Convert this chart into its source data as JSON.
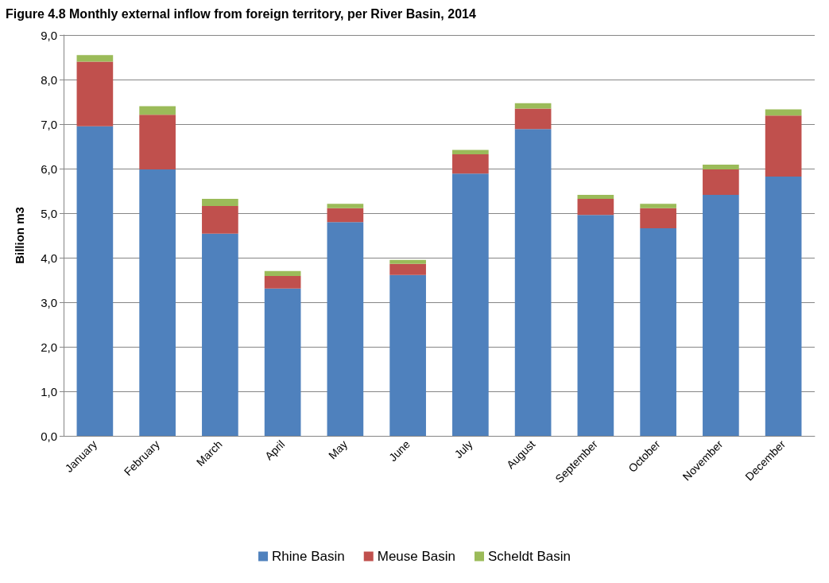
{
  "chart_data": {
    "type": "bar",
    "title": "Figure 4.8 Monthly external inflow from foreign territory, per River Basin, 2014",
    "ylabel": "Billion m3",
    "categories": [
      "January",
      "February",
      "March",
      "April",
      "May",
      "June",
      "July",
      "August",
      "September",
      "October",
      "November",
      "December"
    ],
    "stacked": true,
    "series": [
      {
        "name": "Rhine Basin",
        "color": "#4f81bd",
        "values": [
          6.95,
          5.98,
          4.54,
          3.31,
          4.8,
          3.61,
          5.89,
          6.89,
          4.96,
          4.66,
          5.41,
          5.82
        ]
      },
      {
        "name": "Meuse Basin",
        "color": "#c0504d",
        "values": [
          1.45,
          1.23,
          0.62,
          0.28,
          0.31,
          0.25,
          0.43,
          0.46,
          0.36,
          0.45,
          0.57,
          1.37
        ]
      },
      {
        "name": "Scheldt Basin",
        "color": "#9bbb59",
        "values": [
          0.15,
          0.19,
          0.16,
          0.11,
          0.1,
          0.09,
          0.1,
          0.12,
          0.09,
          0.1,
          0.11,
          0.14
        ]
      }
    ],
    "ylim": [
      0,
      9
    ],
    "yticks": [
      {
        "value": 0,
        "label": "0,0"
      },
      {
        "value": 1,
        "label": "1,0"
      },
      {
        "value": 2,
        "label": "2,0"
      },
      {
        "value": 3,
        "label": "3,0"
      },
      {
        "value": 4,
        "label": "4,0"
      },
      {
        "value": 5,
        "label": "5,0"
      },
      {
        "value": 6,
        "label": "6,0"
      },
      {
        "value": 7,
        "label": "7,0"
      },
      {
        "value": 8,
        "label": "8,0"
      },
      {
        "value": 9,
        "label": "9,0"
      }
    ],
    "grid": "y",
    "legend": "bottom"
  }
}
